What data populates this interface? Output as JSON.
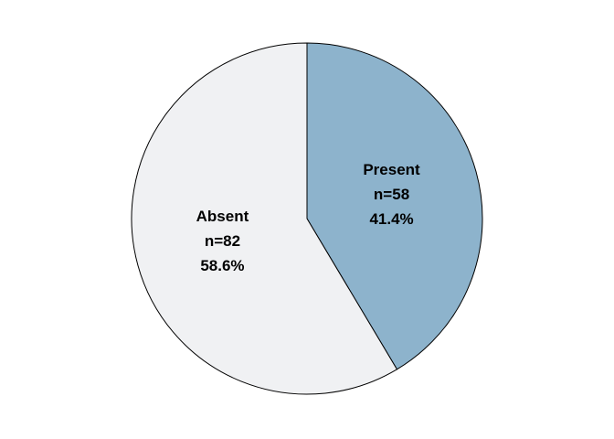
{
  "chart_data": {
    "type": "pie",
    "categories": [
      "Present",
      "Absent"
    ],
    "values": [
      58,
      82
    ],
    "value_labels": [
      "n=58",
      "n=82"
    ],
    "percents": [
      41.4,
      58.6
    ],
    "percent_labels": [
      "41.4%",
      "58.6%"
    ],
    "colors": [
      "#8db3cc",
      "#f0f1f3"
    ]
  }
}
